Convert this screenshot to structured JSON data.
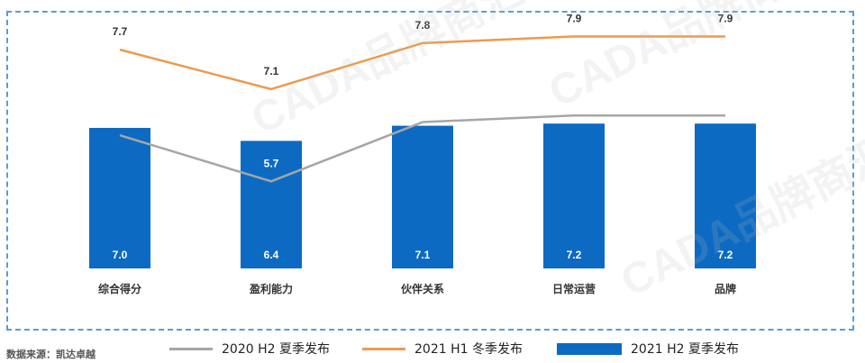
{
  "source_note": "数据来源：凯达卓越",
  "watermark_text": "CADA品牌商汇",
  "chart_data": {
    "type": "bar",
    "categories": [
      "综合得分",
      "盈利能力",
      "伙伴关系",
      "日常运营",
      "品牌"
    ],
    "series": [
      {
        "name": "2020 H2 夏季发布",
        "kind": "line",
        "values": [
          6.4,
          5.7,
          6.6,
          6.7,
          6.7
        ]
      },
      {
        "name": "2021 H1 冬季发布",
        "kind": "line",
        "values": [
          7.7,
          7.1,
          7.8,
          7.9,
          7.9
        ]
      },
      {
        "name": "2021 H2 夏季发布",
        "kind": "bar",
        "values": [
          7.0,
          6.4,
          7.1,
          7.2,
          7.2
        ]
      }
    ],
    "colors": {
      "line_2020_h2": "#a6a6a6",
      "line_2021_h1": "#ed9a4e",
      "bar_2021_h2": "#0c6ac2",
      "frame": "#5b9bd5"
    },
    "grid": false,
    "legend_position": "bottom"
  }
}
